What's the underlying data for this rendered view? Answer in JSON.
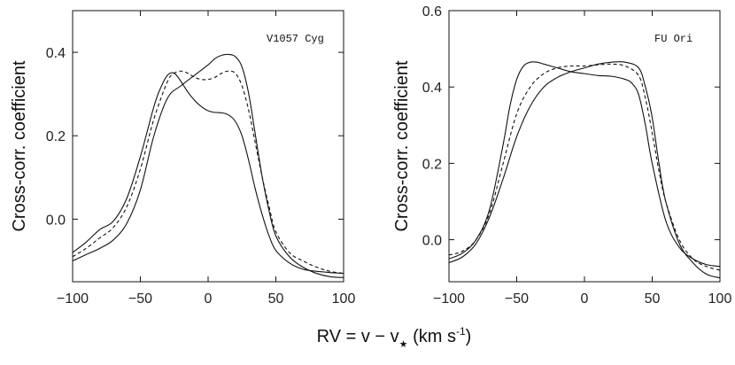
{
  "chart_data": [
    {
      "type": "line",
      "annotation": "V1057 Cyg",
      "ylabel": "Cross-corr. coefficient",
      "xlim": [
        -100,
        100
      ],
      "ylim": [
        -0.15,
        0.5
      ],
      "xticks": [
        -100,
        -50,
        0,
        50,
        100
      ],
      "xtick_labels": [
        "−100",
        "−50",
        "0",
        "50",
        "100"
      ],
      "yticks": [
        0.0,
        0.2,
        0.4
      ],
      "ytick_labels": [
        "0.0",
        "0.2",
        "0.4"
      ],
      "series": [
        {
          "name": "curve 1 (solid, peak near -25)",
          "style": "solid",
          "x": [
            -100,
            -90,
            -80,
            -70,
            -60,
            -50,
            -40,
            -35,
            -30,
            -25,
            -20,
            -15,
            -10,
            -5,
            0,
            5,
            10,
            15,
            20,
            25,
            30,
            35,
            40,
            45,
            50,
            60,
            70,
            80,
            90,
            100
          ],
          "y": [
            -0.08,
            -0.055,
            -0.025,
            -0.005,
            0.05,
            0.15,
            0.27,
            0.315,
            0.345,
            0.35,
            0.33,
            0.305,
            0.285,
            0.27,
            0.26,
            0.256,
            0.255,
            0.25,
            0.235,
            0.2,
            0.14,
            0.07,
            0.01,
            -0.04,
            -0.075,
            -0.105,
            -0.12,
            -0.125,
            -0.128,
            -0.13
          ]
        },
        {
          "name": "curve 2 (dashed, average)",
          "style": "dashed",
          "x": [
            -100,
            -90,
            -80,
            -70,
            -60,
            -50,
            -40,
            -30,
            -25,
            -20,
            -15,
            -10,
            -5,
            0,
            5,
            10,
            15,
            20,
            25,
            30,
            35,
            40,
            45,
            50,
            60,
            70,
            80,
            90,
            100
          ],
          "y": [
            -0.09,
            -0.07,
            -0.045,
            -0.02,
            0.03,
            0.12,
            0.24,
            0.33,
            0.35,
            0.355,
            0.35,
            0.34,
            0.335,
            0.335,
            0.34,
            0.35,
            0.355,
            0.35,
            0.32,
            0.26,
            0.18,
            0.1,
            0.03,
            -0.03,
            -0.08,
            -0.1,
            -0.115,
            -0.125,
            -0.13
          ]
        },
        {
          "name": "curve 3 (solid, peak near +15)",
          "style": "solid",
          "x": [
            -100,
            -90,
            -80,
            -70,
            -60,
            -50,
            -40,
            -30,
            -20,
            -10,
            0,
            5,
            10,
            15,
            20,
            25,
            30,
            35,
            40,
            45,
            50,
            60,
            70,
            80,
            90,
            100
          ],
          "y": [
            -0.1,
            -0.085,
            -0.07,
            -0.05,
            -0.01,
            0.07,
            0.2,
            0.29,
            0.32,
            0.345,
            0.37,
            0.385,
            0.393,
            0.395,
            0.39,
            0.365,
            0.3,
            0.2,
            0.1,
            0.02,
            -0.04,
            -0.09,
            -0.115,
            -0.13,
            -0.138,
            -0.14
          ]
        }
      ]
    },
    {
      "type": "line",
      "annotation": "FU Ori",
      "ylabel": "Cross-corr. coefficient",
      "xlim": [
        -100,
        100
      ],
      "ylim": [
        -0.11,
        0.6
      ],
      "xticks": [
        -100,
        -50,
        0,
        50,
        100
      ],
      "xtick_labels": [
        "−100",
        "−50",
        "0",
        "50",
        "100"
      ],
      "yticks": [
        0.0,
        0.2,
        0.4,
        0.6
      ],
      "ytick_labels": [
        "0.0",
        "0.2",
        "0.4",
        "0.6"
      ],
      "series": [
        {
          "name": "curve 1 (solid, peak near -35)",
          "style": "solid",
          "x": [
            -100,
            -90,
            -80,
            -70,
            -60,
            -55,
            -50,
            -45,
            -40,
            -35,
            -30,
            -20,
            -10,
            0,
            10,
            20,
            30,
            35,
            40,
            45,
            50,
            60,
            70,
            80,
            90,
            100
          ],
          "y": [
            -0.05,
            -0.035,
            0.0,
            0.08,
            0.25,
            0.35,
            0.42,
            0.455,
            0.465,
            0.465,
            0.46,
            0.45,
            0.44,
            0.435,
            0.43,
            0.428,
            0.42,
            0.41,
            0.38,
            0.3,
            0.2,
            0.05,
            -0.02,
            -0.05,
            -0.065,
            -0.07
          ]
        },
        {
          "name": "curve 2 (dashed, average)",
          "style": "dashed",
          "x": [
            -100,
            -90,
            -80,
            -70,
            -60,
            -50,
            -40,
            -30,
            -20,
            -10,
            0,
            10,
            20,
            30,
            40,
            45,
            50,
            55,
            60,
            70,
            80,
            90,
            100
          ],
          "y": [
            -0.04,
            -0.03,
            0.0,
            0.07,
            0.2,
            0.33,
            0.4,
            0.435,
            0.45,
            0.455,
            0.455,
            0.458,
            0.46,
            0.455,
            0.43,
            0.37,
            0.28,
            0.18,
            0.1,
            0.0,
            -0.05,
            -0.07,
            -0.08
          ]
        },
        {
          "name": "curve 3 (solid, peak near +30)",
          "style": "solid",
          "x": [
            -100,
            -90,
            -80,
            -70,
            -60,
            -50,
            -40,
            -30,
            -20,
            -10,
            0,
            10,
            20,
            30,
            40,
            45,
            50,
            55,
            60,
            70,
            80,
            90,
            100
          ],
          "y": [
            -0.06,
            -0.045,
            -0.01,
            0.06,
            0.16,
            0.27,
            0.35,
            0.4,
            0.425,
            0.44,
            0.45,
            0.46,
            0.465,
            0.465,
            0.45,
            0.4,
            0.32,
            0.2,
            0.1,
            -0.01,
            -0.06,
            -0.09,
            -0.1
          ]
        }
      ]
    }
  ],
  "figure": {
    "xlabel": "RV = v − v",
    "xlabel_sub": "★",
    "xlabel_units": " (km s",
    "xlabel_sup": "-1",
    "xlabel_close": ")"
  }
}
